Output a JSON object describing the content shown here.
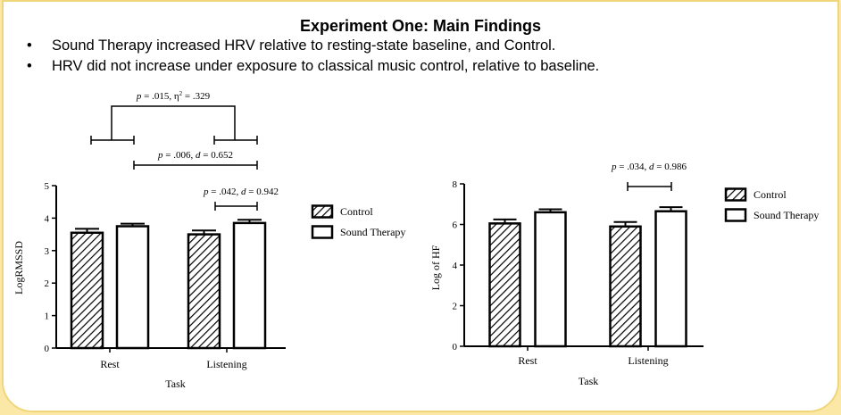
{
  "slide": {
    "title": "Experiment One: Main Findings",
    "bullet_char": "•",
    "bullets": [
      "Sound Therapy increased HRV relative to resting-state baseline, and Control.",
      "HRV did not increase under exposure to classical music control, relative to baseline."
    ]
  },
  "chart_data": [
    {
      "type": "bar",
      "xlabel": "Task",
      "ylabel": "LogRMSSD",
      "ylim": [
        0,
        5
      ],
      "yticks": [
        0,
        1,
        2,
        3,
        4,
        5
      ],
      "categories": [
        "Rest",
        "Listening"
      ],
      "series": [
        {
          "name": "Control",
          "values": [
            3.55,
            3.5
          ],
          "errors": [
            0.12,
            0.12
          ],
          "fill": "hatched"
        },
        {
          "name": "Sound Therapy",
          "values": [
            3.75,
            3.85
          ],
          "errors": [
            0.08,
            0.1
          ],
          "fill": "white"
        }
      ],
      "legend_position": "right",
      "annotations": [
        {
          "label_html": "<tspan font-style='italic'>p</tspan> = .015, η<tspan baseline-shift='super' font-size='7'>2</tspan> = .329",
          "label": "p = .015, η2 = .329"
        },
        {
          "label_html": "<tspan font-style='italic'>p</tspan> = .006, <tspan font-style='italic'>d</tspan> = 0.652",
          "label": "p = .006, d = 0.652"
        },
        {
          "label_html": "<tspan font-style='italic'>p</tspan> = .042, <tspan font-style='italic'>d</tspan> = 0.942",
          "label": "p = .042, d = 0.942"
        }
      ]
    },
    {
      "type": "bar",
      "xlabel": "Task",
      "ylabel": "Log of HF",
      "ylim": [
        0,
        8
      ],
      "yticks": [
        0,
        2,
        4,
        6,
        8
      ],
      "categories": [
        "Rest",
        "Listening"
      ],
      "series": [
        {
          "name": "Control",
          "values": [
            6.05,
            5.9
          ],
          "errors": [
            0.2,
            0.22
          ],
          "fill": "hatched"
        },
        {
          "name": "Sound Therapy",
          "values": [
            6.6,
            6.65
          ],
          "errors": [
            0.15,
            0.2
          ],
          "fill": "white"
        }
      ],
      "legend_position": "right",
      "annotations": [
        {
          "label_html": "<tspan font-style='italic'>p</tspan> = .034, <tspan font-style='italic'>d</tspan> = 0.986",
          "label": "p = .034, d = 0.986"
        }
      ]
    }
  ]
}
